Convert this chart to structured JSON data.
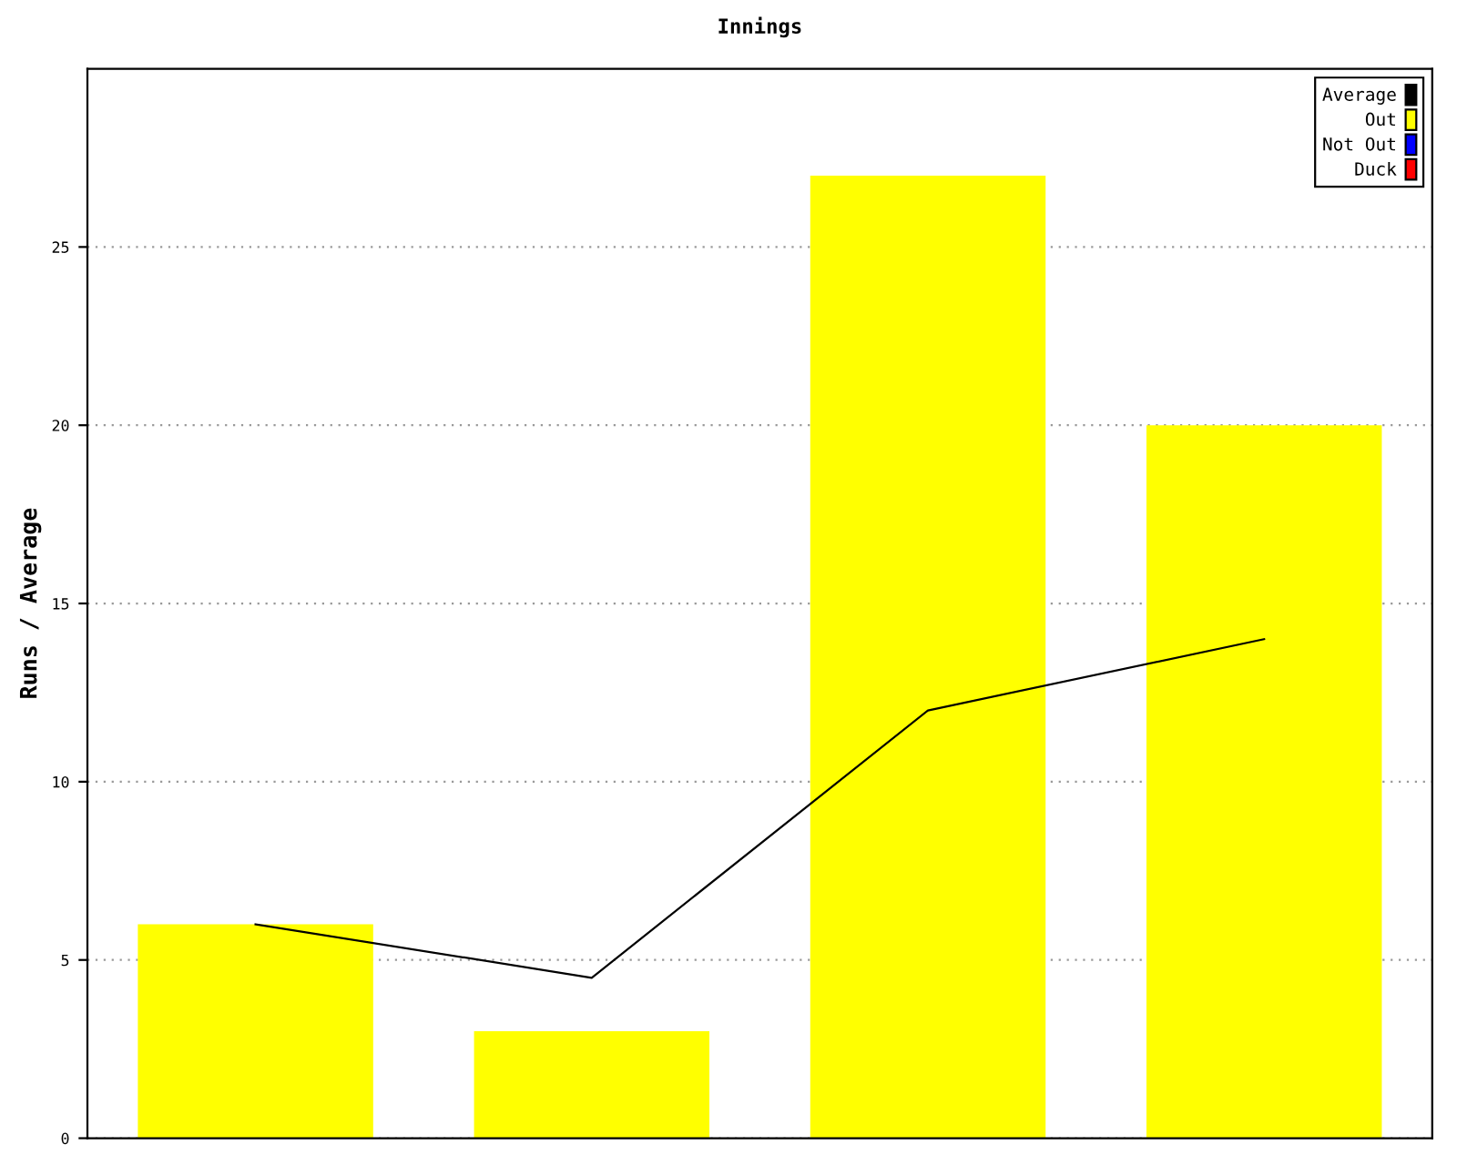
{
  "chart_data": {
    "type": "bar",
    "title": "Innings",
    "ylabel": "Runs / Average",
    "categories": [
      null,
      null,
      null,
      null
    ],
    "series": [
      {
        "name": "Average",
        "type": "line",
        "color": "#000000",
        "values": [
          6,
          4.5,
          12,
          14
        ]
      },
      {
        "name": "Out",
        "color": "#ffff00",
        "values": [
          6,
          3,
          27,
          20
        ]
      },
      {
        "name": "Not Out",
        "color": "#0000ff",
        "values": [
          null,
          null,
          null,
          null
        ]
      },
      {
        "name": "Duck",
        "color": "#ff0000",
        "values": [
          null,
          null,
          null,
          null
        ]
      }
    ],
    "ylim": [
      0,
      30
    ],
    "yticks": [
      0,
      5,
      10,
      15,
      20,
      25
    ],
    "grid": "y",
    "legend": "top right",
    "marker": "none",
    "line_style": "solid"
  }
}
